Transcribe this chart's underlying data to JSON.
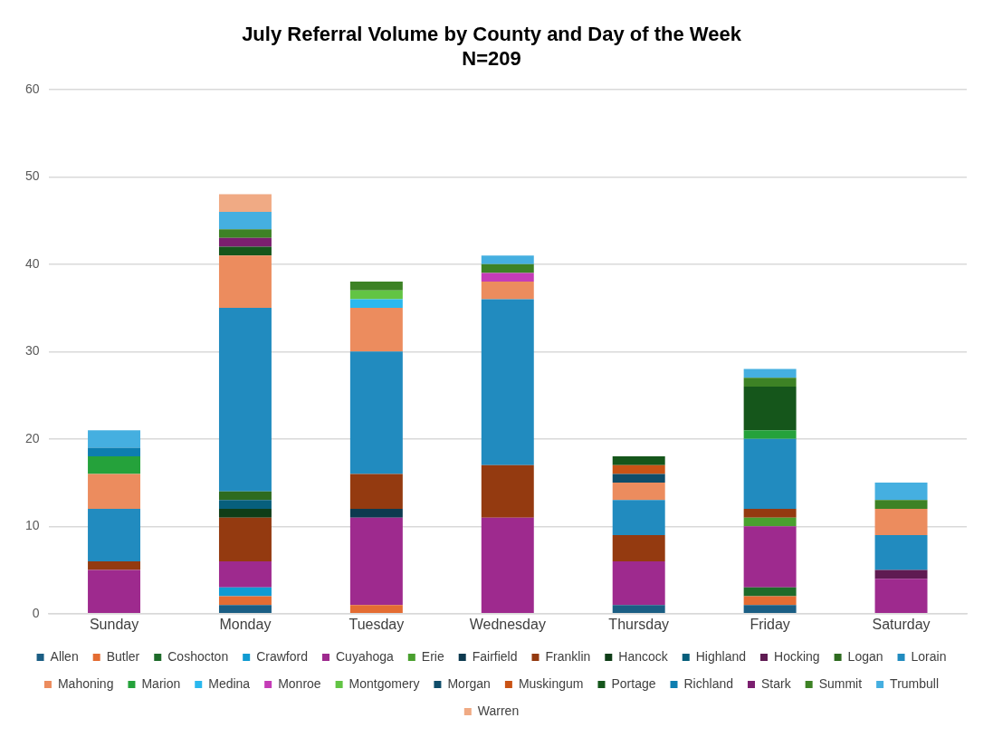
{
  "chart_data": {
    "type": "bar",
    "stacked": true,
    "title": "July Referral Volume by County and Day of the Week",
    "subtitle": "N=209",
    "categories": [
      "Sunday",
      "Monday",
      "Tuesday",
      "Wednesday",
      "Thursday",
      "Friday",
      "Saturday"
    ],
    "ylim": [
      0,
      60
    ],
    "yticks": [
      0,
      10,
      20,
      30,
      40,
      50,
      60
    ],
    "grid": "y",
    "legend": "bottom",
    "series": [
      {
        "name": "Allen",
        "color": "#1b5e84",
        "values": [
          0,
          1,
          0,
          0,
          1,
          1,
          0
        ]
      },
      {
        "name": "Butler",
        "color": "#e46c32",
        "values": [
          0,
          1,
          1,
          0,
          0,
          1,
          0
        ]
      },
      {
        "name": "Coshocton",
        "color": "#1e6b2a",
        "values": [
          0,
          0,
          0,
          0,
          0,
          1,
          0
        ]
      },
      {
        "name": "Crawford",
        "color": "#109bd2",
        "values": [
          0,
          1,
          0,
          0,
          0,
          0,
          0
        ]
      },
      {
        "name": "Cuyahoga",
        "color": "#9e2a8e",
        "values": [
          5,
          3,
          10,
          11,
          5,
          7,
          4
        ]
      },
      {
        "name": "Erie",
        "color": "#4aa02f",
        "values": [
          0,
          0,
          0,
          0,
          0,
          1,
          0
        ]
      },
      {
        "name": "Fairfield",
        "color": "#0d3a4f",
        "values": [
          0,
          0,
          1,
          0,
          0,
          0,
          0
        ]
      },
      {
        "name": "Franklin",
        "color": "#943a10",
        "values": [
          1,
          5,
          4,
          6,
          3,
          1,
          0
        ]
      },
      {
        "name": "Hancock",
        "color": "#0f3d17",
        "values": [
          0,
          1,
          0,
          0,
          0,
          0,
          0
        ]
      },
      {
        "name": "Highland",
        "color": "#075f7c",
        "values": [
          0,
          1,
          0,
          0,
          0,
          0,
          0
        ]
      },
      {
        "name": "Hocking",
        "color": "#5f1b52",
        "values": [
          0,
          0,
          0,
          0,
          0,
          0,
          1
        ]
      },
      {
        "name": "Logan",
        "color": "#2e6b1f",
        "values": [
          0,
          1,
          0,
          0,
          0,
          0,
          0
        ]
      },
      {
        "name": "Lorain",
        "color": "#218bbf",
        "values": [
          6,
          21,
          14,
          19,
          4,
          8,
          4
        ]
      },
      {
        "name": "Mahoning",
        "color": "#ec8c5e",
        "values": [
          4,
          6,
          5,
          2,
          2,
          0,
          3
        ]
      },
      {
        "name": "Marion",
        "color": "#25a23b",
        "values": [
          2,
          0,
          0,
          0,
          0,
          1,
          0
        ]
      },
      {
        "name": "Medina",
        "color": "#2ab8ee",
        "values": [
          0,
          0,
          1,
          0,
          0,
          0,
          0
        ]
      },
      {
        "name": "Monroe",
        "color": "#c53cb7",
        "values": [
          0,
          0,
          0,
          1,
          0,
          0,
          0
        ]
      },
      {
        "name": "Montgomery",
        "color": "#62c444",
        "values": [
          0,
          0,
          1,
          0,
          0,
          0,
          0
        ]
      },
      {
        "name": "Morgan",
        "color": "#0f4d6a",
        "values": [
          0,
          0,
          0,
          0,
          1,
          0,
          0
        ]
      },
      {
        "name": "Muskingum",
        "color": "#c95315",
        "values": [
          0,
          0,
          0,
          0,
          1,
          0,
          0
        ]
      },
      {
        "name": "Portage",
        "color": "#15561b",
        "values": [
          0,
          1,
          0,
          0,
          1,
          5,
          0
        ]
      },
      {
        "name": "Richland",
        "color": "#0d7eb0",
        "values": [
          1,
          0,
          0,
          0,
          0,
          0,
          0
        ]
      },
      {
        "name": "Stark",
        "color": "#7b1f6f",
        "values": [
          0,
          1,
          0,
          0,
          0,
          0,
          0
        ]
      },
      {
        "name": "Summit",
        "color": "#3d8225",
        "values": [
          0,
          1,
          1,
          1,
          0,
          1,
          1
        ]
      },
      {
        "name": "Trumbull",
        "color": "#45afe0",
        "values": [
          2,
          2,
          0,
          1,
          0,
          1,
          2
        ]
      },
      {
        "name": "Warren",
        "color": "#f0aa84",
        "values": [
          0,
          2,
          0,
          0,
          0,
          0,
          0
        ]
      }
    ]
  }
}
